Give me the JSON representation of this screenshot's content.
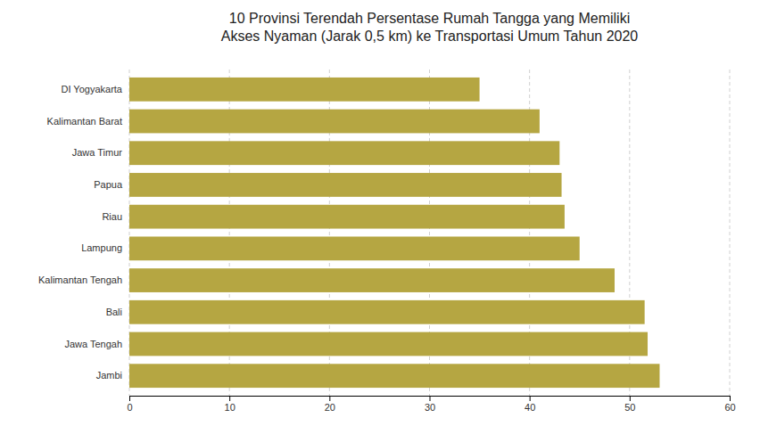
{
  "chart_data": {
    "type": "bar",
    "orientation": "horizontal",
    "title": "10 Provinsi Terendah Persentase Rumah Tangga yang Memiliki\nAkses Nyaman (Jarak 0,5 km) ke Transportasi Umum Tahun 2020",
    "categories": [
      "Jambi",
      "Jawa Tengah",
      "Bali",
      "Kalimantan Tengah",
      "Lampung",
      "Riau",
      "Papua",
      "Jawa Timur",
      "Kalimantan Barat",
      "DI Yogyakarta"
    ],
    "values": [
      53.0,
      51.8,
      51.5,
      48.5,
      45.0,
      43.5,
      43.2,
      43.0,
      41.0,
      35.0
    ],
    "color": "#b5a642",
    "xlim": [
      0,
      60
    ],
    "xticks": [
      0,
      10,
      20,
      30,
      40,
      50,
      60
    ],
    "grid": true
  }
}
